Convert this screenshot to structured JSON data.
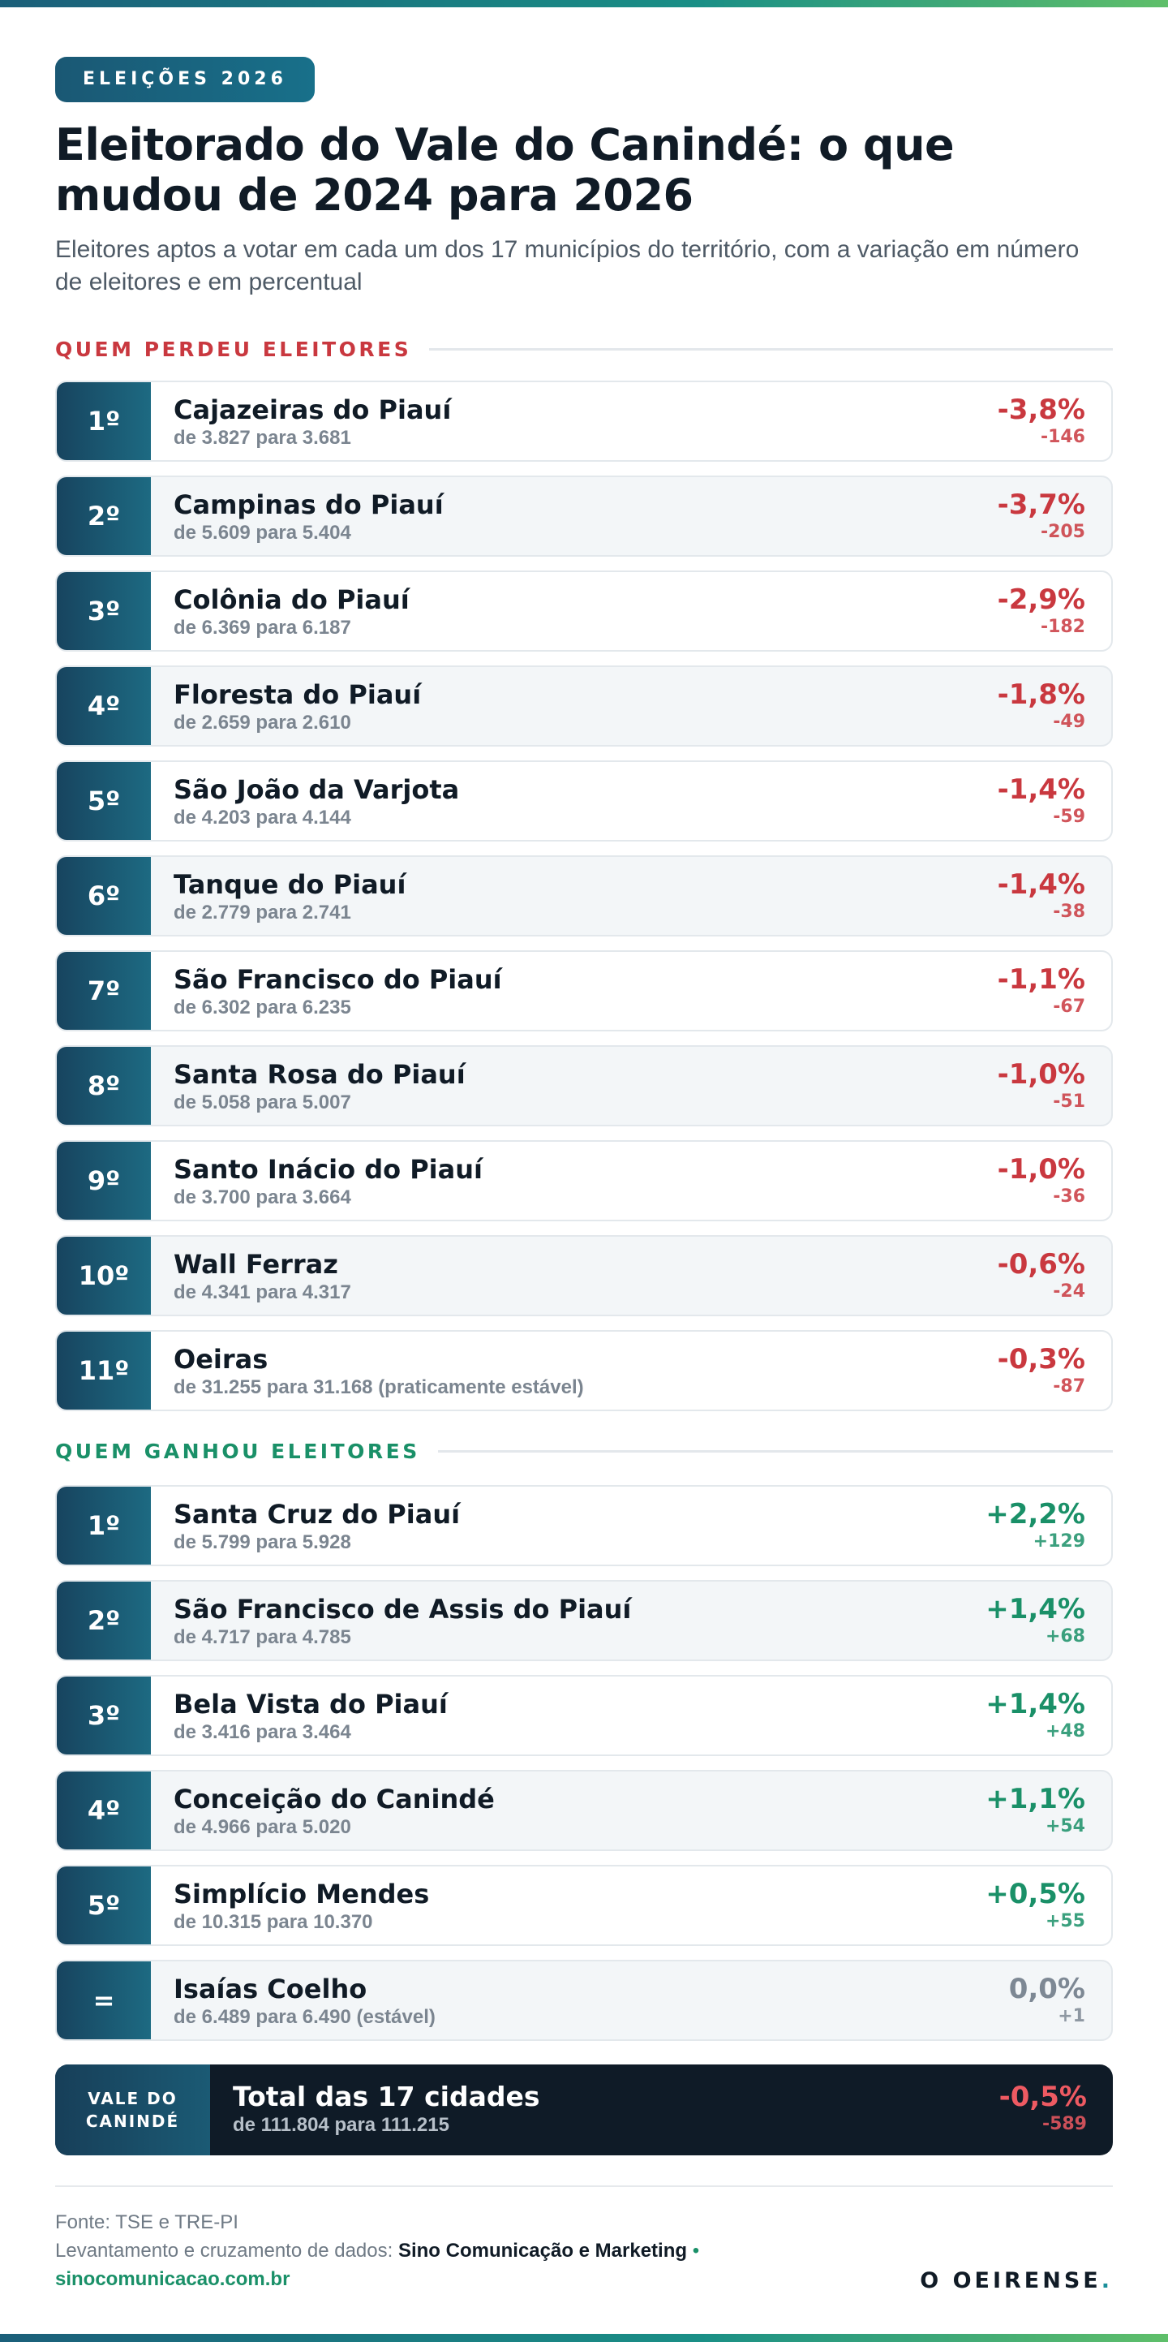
{
  "header": {
    "badge": "ELEIÇÕES 2026",
    "title": "Eleitorado do Vale do Canindé: o que mudou de 2024 para 2026",
    "subtitle": "Eleitores aptos a votar em cada um dos 17 municípios do território, com a variação em número de eleitores e em percentual"
  },
  "sections": [
    {
      "title": "QUEM PERDEU ELEITORES",
      "color": "#c9383f",
      "rows": [
        {
          "rank": "1º",
          "name": "Cajazeiras do Piauí",
          "detail": "de 3.827 para 3.681",
          "pct": "-3,8%",
          "diff": "-146"
        },
        {
          "rank": "2º",
          "name": "Campinas do Piauí",
          "detail": "de 5.609 para 5.404",
          "pct": "-3,7%",
          "diff": "-205"
        },
        {
          "rank": "3º",
          "name": "Colônia do Piauí",
          "detail": "de 6.369 para 6.187",
          "pct": "-2,9%",
          "diff": "-182"
        },
        {
          "rank": "4º",
          "name": "Floresta do Piauí",
          "detail": "de 2.659 para 2.610",
          "pct": "-1,8%",
          "diff": "-49"
        },
        {
          "rank": "5º",
          "name": "São João da Varjota",
          "detail": "de 4.203 para 4.144",
          "pct": "-1,4%",
          "diff": "-59"
        },
        {
          "rank": "6º",
          "name": "Tanque do Piauí",
          "detail": "de 2.779 para 2.741",
          "pct": "-1,4%",
          "diff": "-38"
        },
        {
          "rank": "7º",
          "name": "São Francisco do Piauí",
          "detail": "de 6.302 para 6.235",
          "pct": "-1,1%",
          "diff": "-67"
        },
        {
          "rank": "8º",
          "name": "Santa Rosa do Piauí",
          "detail": "de 5.058 para 5.007",
          "pct": "-1,0%",
          "diff": "-51"
        },
        {
          "rank": "9º",
          "name": "Santo Inácio do Piauí",
          "detail": "de 3.700 para 3.664",
          "pct": "-1,0%",
          "diff": "-36"
        },
        {
          "rank": "10º",
          "name": "Wall Ferraz",
          "detail": "de 4.341 para 4.317",
          "pct": "-0,6%",
          "diff": "-24"
        },
        {
          "rank": "11º",
          "name": "Oeiras",
          "detail": "de 31.255 para 31.168 (praticamente estável)",
          "pct": "-0,3%",
          "diff": "-87"
        }
      ]
    },
    {
      "title": "QUEM GANHOU ELEITORES",
      "color": "#1a9068",
      "rows": [
        {
          "rank": "1º",
          "name": "Santa Cruz do Piauí",
          "detail": "de 5.799 para 5.928",
          "pct": "+2,2%",
          "diff": "+129"
        },
        {
          "rank": "2º",
          "name": "São Francisco de Assis do Piauí",
          "detail": "de 4.717 para 4.785",
          "pct": "+1,4%",
          "diff": "+68"
        },
        {
          "rank": "3º",
          "name": "Bela Vista do Piauí",
          "detail": "de 3.416 para 3.464",
          "pct": "+1,4%",
          "diff": "+48"
        },
        {
          "rank": "4º",
          "name": "Conceição do Canindé",
          "detail": "de 4.966 para 5.020",
          "pct": "+1,1%",
          "diff": "+54"
        },
        {
          "rank": "5º",
          "name": "Simplício Mendes",
          "detail": "de 10.315 para 10.370",
          "pct": "+0,5%",
          "diff": "+55"
        },
        {
          "rank": "=",
          "name": "Isaías Coelho",
          "detail": "de 6.489 para 6.490 (estável)",
          "pct": "0,0%",
          "diff": "+1",
          "color": "#7d8894"
        }
      ]
    }
  ],
  "total": {
    "label": "VALE DO CANINDÉ",
    "title": "Total das 17 cidades",
    "detail": "de 111.804 para 111.215",
    "pct": "-0,5%",
    "diff": "-589"
  },
  "footer": {
    "source": "Fonte: TSE e TRE-PI",
    "credit_label": "Levantamento e cruzamento de dados:",
    "credit_name": "Sino Comunicação e Marketing",
    "separator": "•",
    "site": "sinocomunicacao.com.br",
    "logo_name": "O OEIRENSE",
    "logo_dot": "."
  }
}
